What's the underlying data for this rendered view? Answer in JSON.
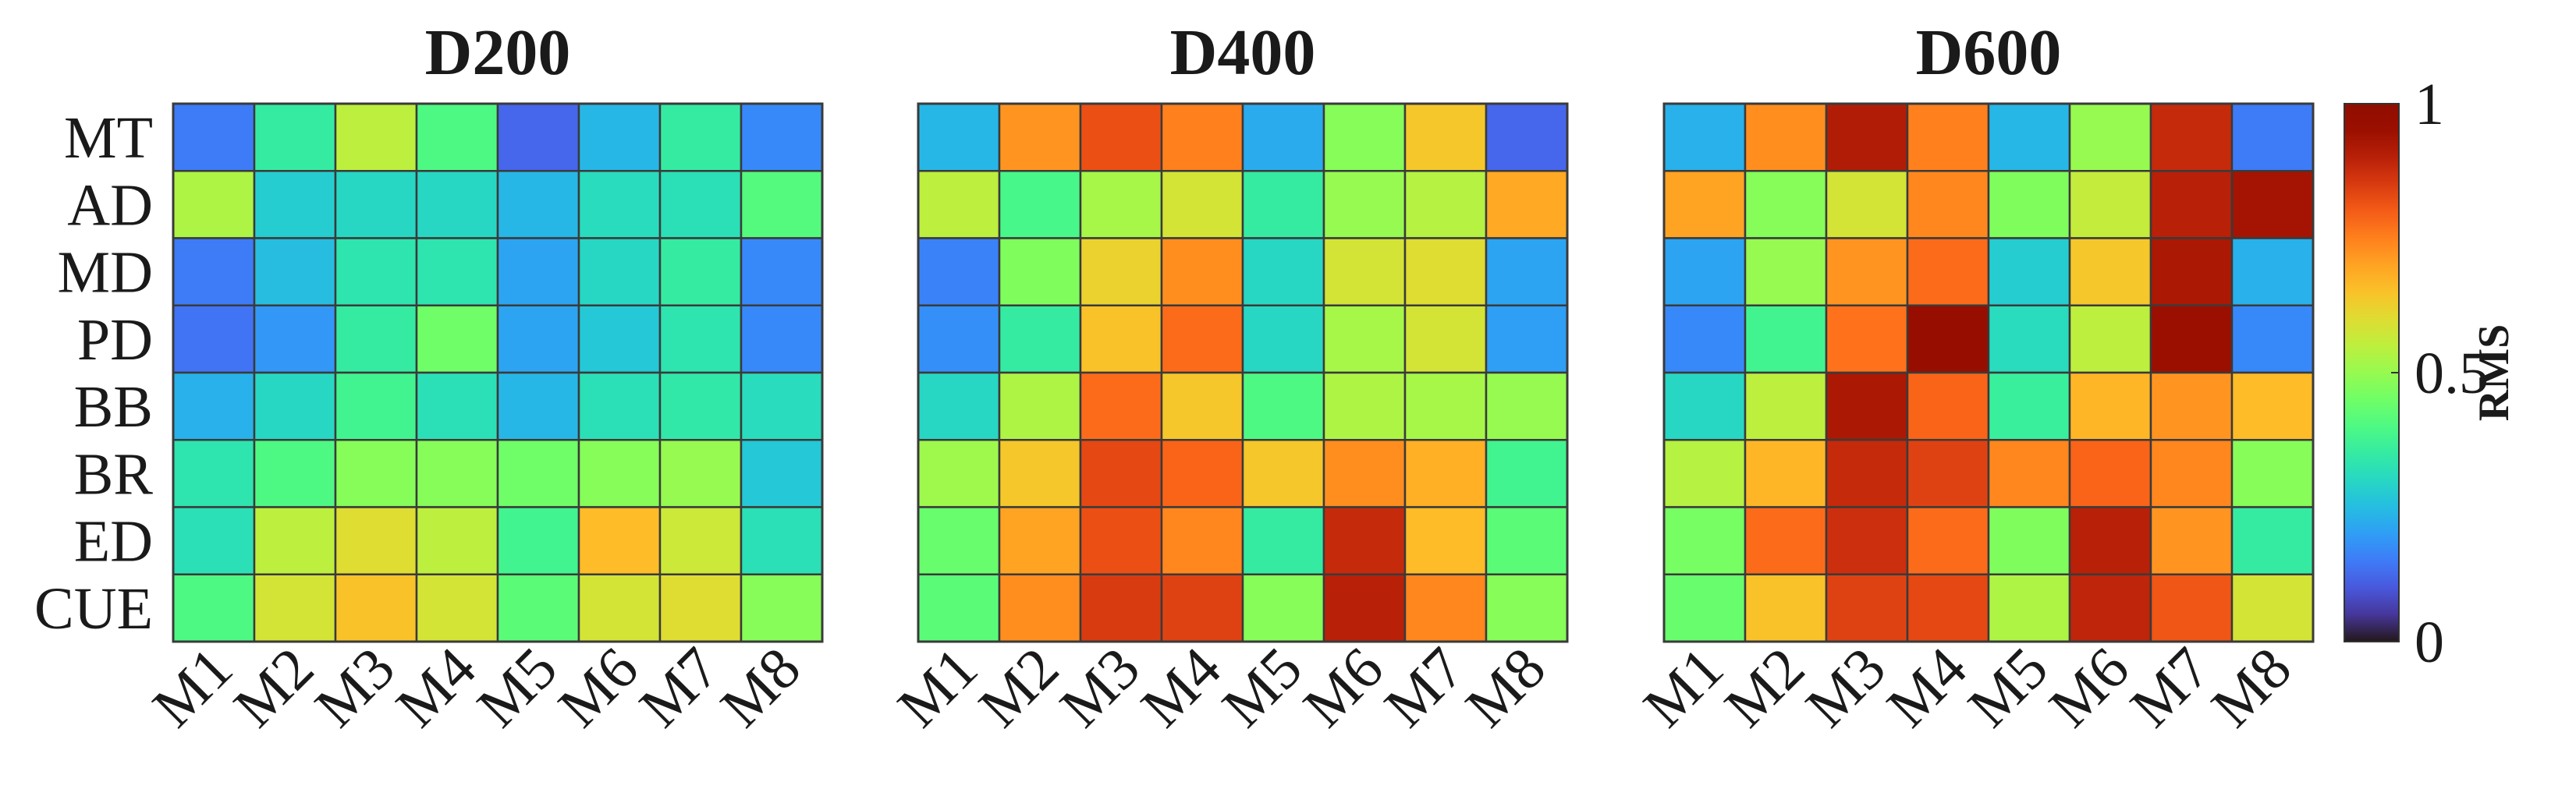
{
  "chart_data": {
    "type": "heatmap",
    "colormap": "turbo",
    "rows": [
      "MT",
      "AD",
      "MD",
      "PD",
      "BB",
      "BR",
      "ED",
      "CUE"
    ],
    "columns": [
      "M1",
      "M2",
      "M3",
      "M4",
      "M5",
      "M6",
      "M7",
      "M8"
    ],
    "panels": [
      {
        "title": "D200",
        "values": [
          [
            0.15,
            0.35,
            0.55,
            0.4,
            0.12,
            0.24,
            0.35,
            0.17
          ],
          [
            0.53,
            0.28,
            0.3,
            0.3,
            0.24,
            0.31,
            0.32,
            0.41
          ],
          [
            0.15,
            0.25,
            0.33,
            0.33,
            0.21,
            0.3,
            0.35,
            0.17
          ],
          [
            0.14,
            0.19,
            0.35,
            0.45,
            0.21,
            0.27,
            0.33,
            0.17
          ],
          [
            0.23,
            0.3,
            0.38,
            0.32,
            0.24,
            0.32,
            0.34,
            0.31
          ],
          [
            0.33,
            0.4,
            0.48,
            0.48,
            0.45,
            0.48,
            0.5,
            0.27
          ],
          [
            0.32,
            0.55,
            0.6,
            0.55,
            0.38,
            0.66,
            0.57,
            0.32
          ],
          [
            0.4,
            0.58,
            0.65,
            0.58,
            0.42,
            0.58,
            0.6,
            0.48
          ]
        ]
      },
      {
        "title": "D400",
        "values": [
          [
            0.24,
            0.72,
            0.82,
            0.75,
            0.22,
            0.48,
            0.64,
            0.12
          ],
          [
            0.55,
            0.39,
            0.52,
            0.58,
            0.35,
            0.5,
            0.54,
            0.69
          ],
          [
            0.16,
            0.47,
            0.62,
            0.73,
            0.3,
            0.58,
            0.6,
            0.21
          ],
          [
            0.18,
            0.35,
            0.65,
            0.78,
            0.3,
            0.52,
            0.58,
            0.2
          ],
          [
            0.3,
            0.53,
            0.78,
            0.64,
            0.4,
            0.53,
            0.52,
            0.5
          ],
          [
            0.51,
            0.64,
            0.83,
            0.79,
            0.64,
            0.73,
            0.68,
            0.38
          ],
          [
            0.44,
            0.7,
            0.82,
            0.74,
            0.35,
            0.88,
            0.66,
            0.42
          ],
          [
            0.42,
            0.73,
            0.85,
            0.84,
            0.48,
            0.9,
            0.74,
            0.48
          ]
        ]
      },
      {
        "title": "D600",
        "values": [
          [
            0.23,
            0.73,
            0.91,
            0.75,
            0.24,
            0.5,
            0.88,
            0.15
          ],
          [
            0.7,
            0.48,
            0.58,
            0.74,
            0.47,
            0.56,
            0.9,
            0.93
          ],
          [
            0.21,
            0.5,
            0.72,
            0.78,
            0.28,
            0.64,
            0.92,
            0.23
          ],
          [
            0.17,
            0.38,
            0.77,
            0.96,
            0.31,
            0.55,
            0.95,
            0.17
          ],
          [
            0.3,
            0.55,
            0.92,
            0.79,
            0.36,
            0.67,
            0.72,
            0.66
          ],
          [
            0.54,
            0.67,
            0.88,
            0.84,
            0.74,
            0.79,
            0.74,
            0.48
          ],
          [
            0.46,
            0.78,
            0.87,
            0.78,
            0.47,
            0.9,
            0.72,
            0.35
          ],
          [
            0.44,
            0.65,
            0.84,
            0.83,
            0.53,
            0.89,
            0.81,
            0.58
          ]
        ]
      }
    ],
    "colorbar": {
      "label": "RMS",
      "range": [
        0,
        1
      ],
      "ticks": [
        0,
        0.5,
        1
      ],
      "tick_labels": [
        "0",
        "0.5",
        "1"
      ]
    }
  }
}
